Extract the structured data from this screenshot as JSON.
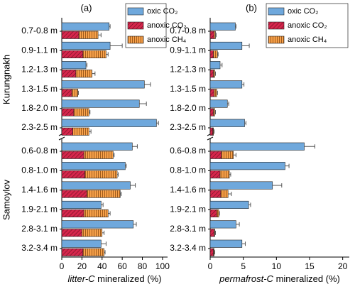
{
  "chart_data": [
    {
      "type": "hbar-stacked",
      "panel_label": "(a)",
      "xlabel_italic": "litter-C",
      "xlabel": "mineralized (%)",
      "groups": [
        {
          "name": "Kurungnakh",
          "categories": [
            "0.7-0.8 m",
            "0.9-1.1 m",
            "1.2-1.3 m",
            "1.3-1.5 m",
            "1.8-2.0 m",
            "2.3-2.5 m"
          ]
        },
        {
          "name": "Samoylov",
          "categories": [
            "0.6-0.8 m",
            "0.8-1.0 m",
            "1.4-1.6 m",
            "1.9-2.1 m",
            "2.8-3.1 m",
            "3.2-3.4 m"
          ]
        }
      ],
      "xlim": [
        0,
        105
      ],
      "xticks": [
        0,
        20,
        40,
        60,
        80,
        100
      ],
      "series": [
        {
          "name": "oxic CO₂",
          "color": "#6fa8dc",
          "hatch": "none",
          "stack": "oxic",
          "values": [
            47,
            48,
            24,
            82,
            77,
            94,
            70,
            63,
            68,
            39,
            71,
            39
          ],
          "errors": [
            1,
            12,
            1,
            6,
            7,
            2,
            5,
            1,
            5,
            2,
            3,
            5
          ]
        },
        {
          "name": "anoxic CO₂",
          "color": "#d6264c",
          "hatch": "diagonal",
          "stack": "anoxic",
          "values": [
            17,
            21,
            14,
            10,
            12,
            11,
            22,
            23,
            25,
            22,
            20,
            21
          ]
        },
        {
          "name": "anoxic CH₄",
          "color": "#f7a14a",
          "hatch": "vertical",
          "stack": "anoxic",
          "values": [
            19,
            23,
            16,
            6,
            15,
            16,
            29,
            32,
            33,
            24,
            20,
            21
          ],
          "errors": [
            3,
            2,
            3,
            0.5,
            1,
            2,
            1,
            1,
            1,
            2,
            2,
            1
          ]
        }
      ]
    },
    {
      "type": "hbar-stacked",
      "panel_label": "(b)",
      "xlabel_italic": "permafrost-C",
      "xlabel": "mineralized (%)",
      "categories": [
        "0.7-0.8 m",
        "0.9-1.1 m",
        "1.2-1.3 m",
        "1.3-1.5 m",
        "1.8-2.0 m",
        "2.3-2.5 m",
        "0.6-0.8 m",
        "0.8-1.0 m",
        "1.4-1.6 m",
        "1.9-2.1 m",
        "2.8-3.1 m",
        "3.2-3.4 m"
      ],
      "xlim": [
        0,
        21
      ],
      "xticks": [
        0,
        5,
        10,
        15,
        20
      ],
      "series": [
        {
          "name": "oxic CO₂",
          "color": "#6fa8dc",
          "hatch": "none",
          "stack": "oxic",
          "values": [
            3.8,
            4.8,
            1.5,
            4.8,
            2.6,
            5.2,
            14.2,
            11.3,
            9.4,
            5.8,
            3.9,
            4.8
          ],
          "errors": [
            0.1,
            1.1,
            0.3,
            0.3,
            0.2,
            0.2,
            1.6,
            0.6,
            1.4,
            0.3,
            0.5,
            0.5
          ]
        },
        {
          "name": "anoxic CO₂",
          "color": "#d6264c",
          "hatch": "diagonal",
          "stack": "anoxic",
          "values": [
            0.6,
            0.5,
            0.5,
            0.6,
            0.5,
            0.4,
            1.7,
            1.5,
            1.6,
            1.0,
            0.6,
            0.5
          ]
        },
        {
          "name": "anoxic CH₄",
          "color": "#f7a14a",
          "hatch": "vertical",
          "stack": "anoxic",
          "values": [
            0.2,
            0.6,
            0.2,
            0.4,
            0.2,
            0.1,
            1.8,
            1.4,
            1.1,
            0.3,
            0.1,
            0.1
          ],
          "errors": [
            0.1,
            0.1,
            0.1,
            0.1,
            0.1,
            0.1,
            0.4,
            0.2,
            0.5,
            0.1,
            0.1,
            0.1
          ]
        }
      ]
    }
  ]
}
